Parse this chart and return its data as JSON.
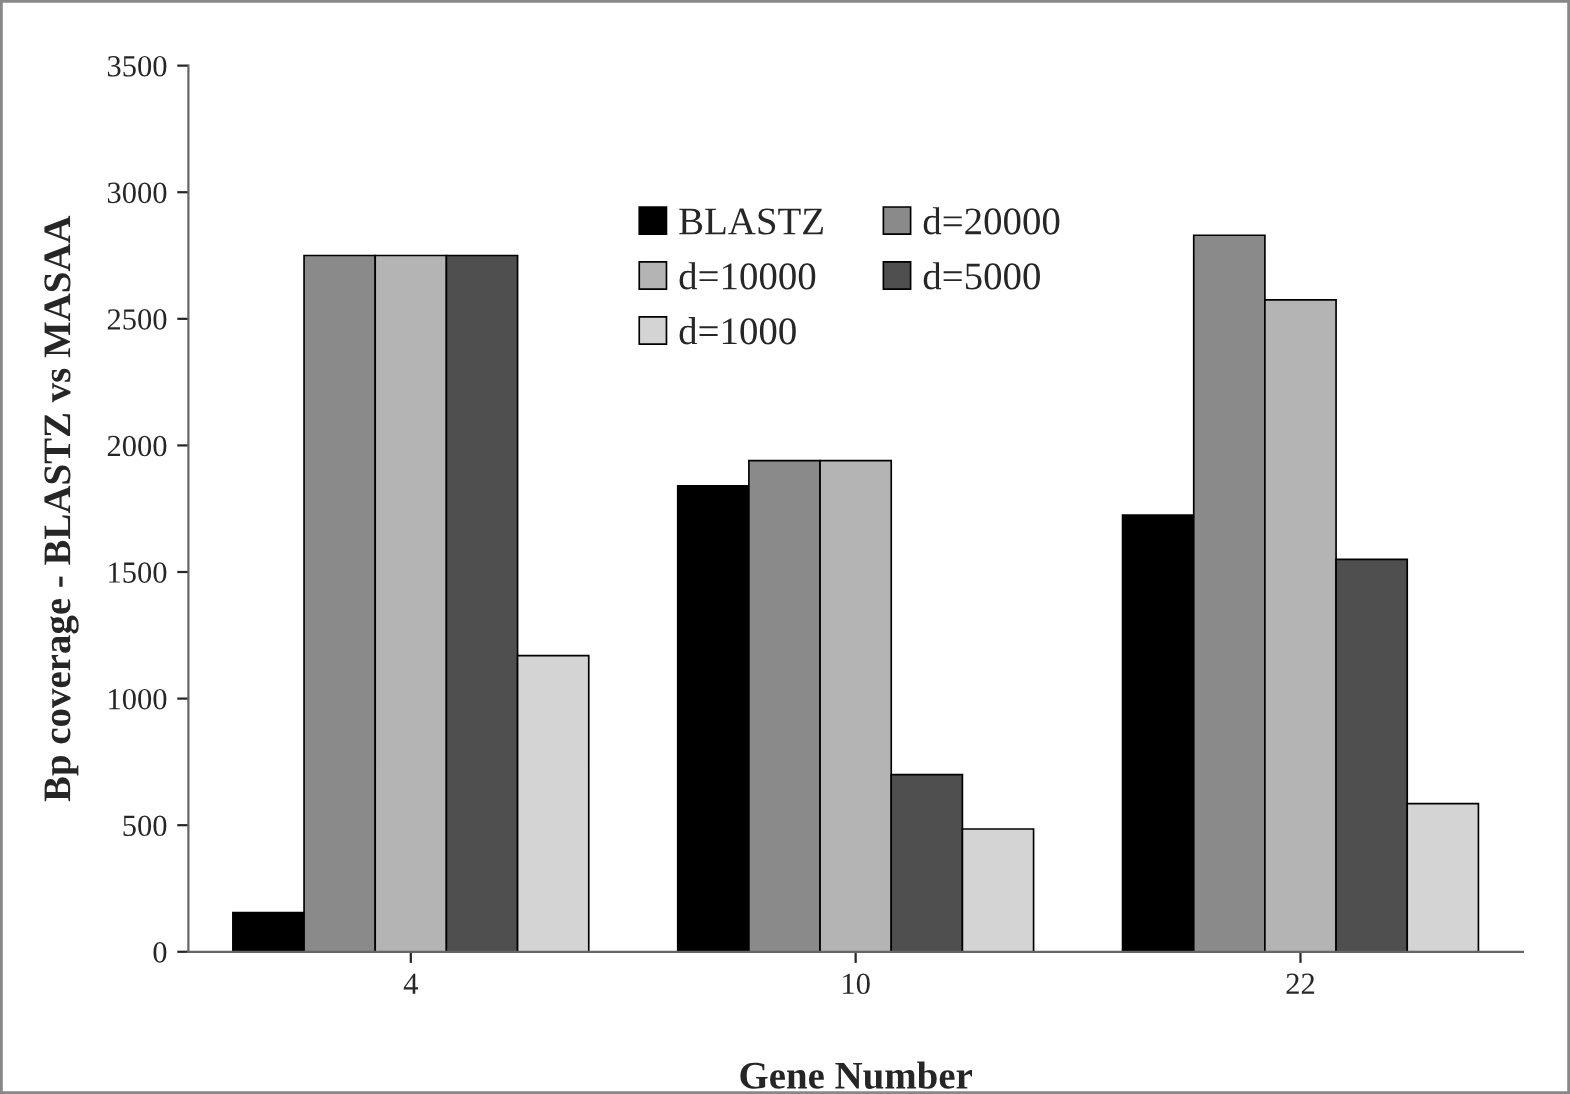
{
  "chart_data": {
    "type": "bar",
    "xlabel": "Gene Number",
    "ylabel": "Bp coverage - BLASTZ vs MASAA",
    "categories": [
      "4",
      "10",
      "22"
    ],
    "series": [
      {
        "name": "BLASTZ",
        "color": "#000000",
        "values": [
          155,
          1840,
          1725
        ]
      },
      {
        "name": "d=20000",
        "color": "#8a8a8a",
        "values": [
          2750,
          1940,
          2830
        ]
      },
      {
        "name": "d=10000",
        "color": "#b4b4b4",
        "values": [
          2750,
          1940,
          2575
        ]
      },
      {
        "name": "d=5000",
        "color": "#4f4f4f",
        "values": [
          2750,
          700,
          1550
        ]
      },
      {
        "name": "d=1000",
        "color": "#d4d4d4",
        "values": [
          1170,
          485,
          585
        ]
      }
    ],
    "ylim": [
      0,
      3500
    ],
    "yticks": [
      0,
      500,
      1000,
      1500,
      2000,
      2500,
      3000,
      3500
    ],
    "grid": false,
    "legend": "top right"
  }
}
